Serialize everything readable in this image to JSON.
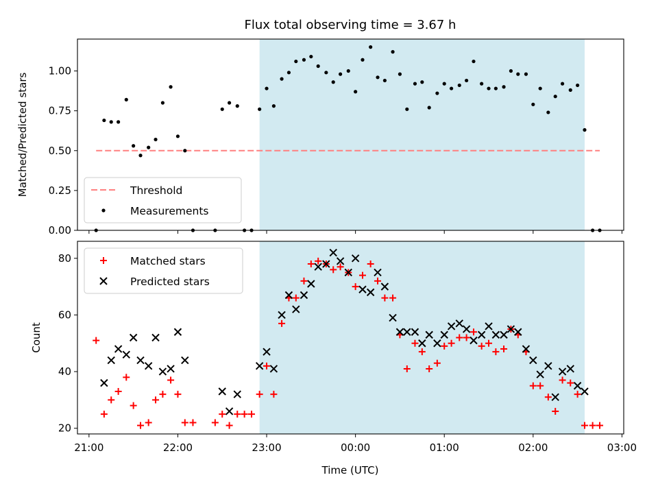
{
  "title": "Flux total observing time = 3.67 h",
  "x_axis": {
    "label": "Time (UTC)",
    "ticks": [
      {
        "h": 21,
        "label": "21:00"
      },
      {
        "h": 22,
        "label": "22:00"
      },
      {
        "h": 23,
        "label": "23:00"
      },
      {
        "h": 24,
        "label": "00:00"
      },
      {
        "h": 25,
        "label": "01:00"
      },
      {
        "h": 26,
        "label": "02:00"
      },
      {
        "h": 27,
        "label": "03:00"
      }
    ]
  },
  "colors": {
    "shade": "#add8e6",
    "threshold": "#ff7f7f",
    "matched": "#ff0000",
    "predicted": "#000000",
    "measurement": "#000000"
  },
  "chart_data": [
    {
      "type": "scatter",
      "ylabel": "Matched/Predicted stars",
      "xlim": [
        20.87,
        27.02
      ],
      "ylim": [
        0,
        1.2
      ],
      "yticks": [
        {
          "v": 0,
          "label": "0.00"
        },
        {
          "v": 0.25,
          "label": "0.25"
        },
        {
          "v": 0.5,
          "label": "0.50"
        },
        {
          "v": 0.75,
          "label": "0.75"
        },
        {
          "v": 1.0,
          "label": "1.00"
        }
      ],
      "shaded_span": [
        22.92,
        26.58
      ],
      "threshold": {
        "name": "Threshold",
        "y": 0.5,
        "x": [
          21.08,
          26.75
        ],
        "style": "dashed"
      },
      "legend": {
        "location": "lower left",
        "entries": [
          "Threshold",
          "Measurements"
        ]
      },
      "series": [
        {
          "name": "Measurements",
          "points": [
            [
              21.08,
              0
            ],
            [
              21.17,
              0.69
            ],
            [
              21.25,
              0.68
            ],
            [
              21.33,
              0.68
            ],
            [
              21.42,
              0.82
            ],
            [
              21.5,
              0.53
            ],
            [
              21.58,
              0.47
            ],
            [
              21.67,
              0.52
            ],
            [
              21.75,
              0.57
            ],
            [
              21.83,
              0.8
            ],
            [
              21.92,
              0.9
            ],
            [
              22.0,
              0.59
            ],
            [
              22.08,
              0.5
            ],
            [
              22.17,
              0
            ],
            [
              22.42,
              0
            ],
            [
              22.5,
              0.76
            ],
            [
              22.58,
              0.8
            ],
            [
              22.67,
              0.78
            ],
            [
              22.75,
              0
            ],
            [
              22.83,
              0
            ],
            [
              22.92,
              0.76
            ],
            [
              23.0,
              0.89
            ],
            [
              23.08,
              0.78
            ],
            [
              23.17,
              0.95
            ],
            [
              23.25,
              0.99
            ],
            [
              23.33,
              1.06
            ],
            [
              23.42,
              1.07
            ],
            [
              23.5,
              1.09
            ],
            [
              23.58,
              1.03
            ],
            [
              23.67,
              0.99
            ],
            [
              23.75,
              0.93
            ],
            [
              23.83,
              0.98
            ],
            [
              23.92,
              1.0
            ],
            [
              24.0,
              0.87
            ],
            [
              24.08,
              1.07
            ],
            [
              24.17,
              1.15
            ],
            [
              24.25,
              0.96
            ],
            [
              24.33,
              0.94
            ],
            [
              24.42,
              1.12
            ],
            [
              24.5,
              0.98
            ],
            [
              24.58,
              0.76
            ],
            [
              24.67,
              0.92
            ],
            [
              24.75,
              0.93
            ],
            [
              24.83,
              0.77
            ],
            [
              24.92,
              0.86
            ],
            [
              25.0,
              0.92
            ],
            [
              25.08,
              0.89
            ],
            [
              25.17,
              0.91
            ],
            [
              25.25,
              0.94
            ],
            [
              25.33,
              1.06
            ],
            [
              25.42,
              0.92
            ],
            [
              25.5,
              0.89
            ],
            [
              25.58,
              0.89
            ],
            [
              25.67,
              0.9
            ],
            [
              25.75,
              1.0
            ],
            [
              25.83,
              0.98
            ],
            [
              25.92,
              0.98
            ],
            [
              26.0,
              0.79
            ],
            [
              26.08,
              0.89
            ],
            [
              26.17,
              0.74
            ],
            [
              26.25,
              0.84
            ],
            [
              26.33,
              0.92
            ],
            [
              26.42,
              0.88
            ],
            [
              26.5,
              0.91
            ],
            [
              26.58,
              0.63
            ],
            [
              26.67,
              0
            ],
            [
              26.75,
              0
            ]
          ]
        }
      ]
    },
    {
      "type": "scatter",
      "xlabel": "Time (UTC)",
      "ylabel": "Count",
      "xlim": [
        20.87,
        27.02
      ],
      "ylim": [
        18,
        86
      ],
      "yticks": [
        {
          "v": 20,
          "label": "20"
        },
        {
          "v": 40,
          "label": "40"
        },
        {
          "v": 60,
          "label": "60"
        },
        {
          "v": 80,
          "label": "80"
        }
      ],
      "shaded_span": [
        22.92,
        26.58
      ],
      "legend": {
        "location": "upper left",
        "entries": [
          "Matched stars",
          "Predicted stars"
        ]
      },
      "series": [
        {
          "name": "Matched stars",
          "marker": "plus",
          "points": [
            [
              21.08,
              51
            ],
            [
              21.17,
              25
            ],
            [
              21.25,
              30
            ],
            [
              21.33,
              33
            ],
            [
              21.42,
              38
            ],
            [
              21.5,
              28
            ],
            [
              21.58,
              21
            ],
            [
              21.67,
              22
            ],
            [
              21.75,
              30
            ],
            [
              21.83,
              32
            ],
            [
              21.92,
              37
            ],
            [
              22.0,
              32
            ],
            [
              22.08,
              22
            ],
            [
              22.17,
              22
            ],
            [
              22.42,
              22
            ],
            [
              22.5,
              25
            ],
            [
              22.58,
              21
            ],
            [
              22.67,
              25
            ],
            [
              22.75,
              25
            ],
            [
              22.83,
              25
            ],
            [
              22.92,
              32
            ],
            [
              23.0,
              42
            ],
            [
              23.08,
              32
            ],
            [
              23.17,
              57
            ],
            [
              23.25,
              66
            ],
            [
              23.33,
              66
            ],
            [
              23.42,
              72
            ],
            [
              23.5,
              78
            ],
            [
              23.58,
              79
            ],
            [
              23.67,
              78
            ],
            [
              23.75,
              76
            ],
            [
              23.83,
              77
            ],
            [
              23.92,
              75
            ],
            [
              24.0,
              70
            ],
            [
              24.08,
              74
            ],
            [
              24.17,
              78
            ],
            [
              24.25,
              72
            ],
            [
              24.33,
              66
            ],
            [
              24.42,
              66
            ],
            [
              24.5,
              53
            ],
            [
              24.58,
              41
            ],
            [
              24.67,
              50
            ],
            [
              24.75,
              47
            ],
            [
              24.83,
              41
            ],
            [
              24.92,
              43
            ],
            [
              25.0,
              49
            ],
            [
              25.08,
              50
            ],
            [
              25.17,
              52
            ],
            [
              25.25,
              52
            ],
            [
              25.33,
              54
            ],
            [
              25.42,
              49
            ],
            [
              25.5,
              50
            ],
            [
              25.58,
              47
            ],
            [
              25.67,
              48
            ],
            [
              25.75,
              55
            ],
            [
              25.83,
              53
            ],
            [
              25.92,
              47
            ],
            [
              26.0,
              35
            ],
            [
              26.08,
              35
            ],
            [
              26.17,
              31
            ],
            [
              26.25,
              26
            ],
            [
              26.33,
              37
            ],
            [
              26.42,
              36
            ],
            [
              26.5,
              32
            ],
            [
              26.58,
              21
            ],
            [
              26.67,
              21
            ],
            [
              26.75,
              21
            ]
          ]
        },
        {
          "name": "Predicted stars",
          "marker": "x",
          "points": [
            [
              21.17,
              36
            ],
            [
              21.25,
              44
            ],
            [
              21.33,
              48
            ],
            [
              21.42,
              46
            ],
            [
              21.5,
              52
            ],
            [
              21.58,
              44
            ],
            [
              21.67,
              42
            ],
            [
              21.75,
              52
            ],
            [
              21.83,
              40
            ],
            [
              21.92,
              41
            ],
            [
              22.0,
              54
            ],
            [
              22.08,
              44
            ],
            [
              22.5,
              33
            ],
            [
              22.58,
              26
            ],
            [
              22.67,
              32
            ],
            [
              22.92,
              42
            ],
            [
              23.0,
              47
            ],
            [
              23.08,
              41
            ],
            [
              23.17,
              60
            ],
            [
              23.25,
              67
            ],
            [
              23.33,
              62
            ],
            [
              23.42,
              67
            ],
            [
              23.5,
              71
            ],
            [
              23.58,
              77
            ],
            [
              23.67,
              78
            ],
            [
              23.75,
              82
            ],
            [
              23.83,
              79
            ],
            [
              23.92,
              75
            ],
            [
              24.0,
              80
            ],
            [
              24.08,
              69
            ],
            [
              24.17,
              68
            ],
            [
              24.25,
              75
            ],
            [
              24.33,
              70
            ],
            [
              24.42,
              59
            ],
            [
              24.5,
              54
            ],
            [
              24.58,
              54
            ],
            [
              24.67,
              54
            ],
            [
              24.75,
              50
            ],
            [
              24.83,
              53
            ],
            [
              24.92,
              50
            ],
            [
              25.0,
              53
            ],
            [
              25.08,
              56
            ],
            [
              25.17,
              57
            ],
            [
              25.25,
              55
            ],
            [
              25.33,
              51
            ],
            [
              25.42,
              53
            ],
            [
              25.5,
              56
            ],
            [
              25.58,
              53
            ],
            [
              25.67,
              53
            ],
            [
              25.75,
              55
            ],
            [
              25.83,
              54
            ],
            [
              25.92,
              48
            ],
            [
              26.0,
              44
            ],
            [
              26.08,
              39
            ],
            [
              26.17,
              42
            ],
            [
              26.25,
              31
            ],
            [
              26.33,
              40
            ],
            [
              26.42,
              41
            ],
            [
              26.5,
              35
            ],
            [
              26.58,
              33
            ]
          ]
        }
      ]
    }
  ]
}
